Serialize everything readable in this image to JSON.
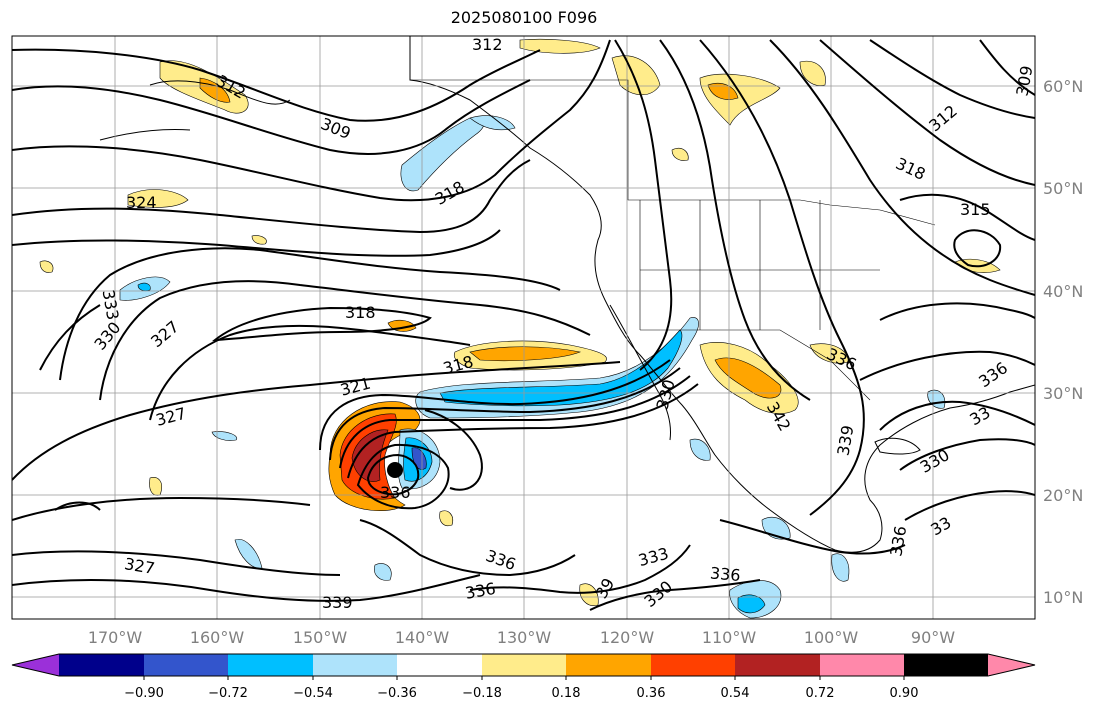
{
  "title": "2025080100 F096",
  "lon_labels": [
    "170°W",
    "160°W",
    "150°W",
    "140°W",
    "130°W",
    "120°W",
    "110°W",
    "100°W",
    "90°W"
  ],
  "lat_labels": [
    "60°N",
    "50°N",
    "40°N",
    "30°N",
    "20°N",
    "10°N"
  ],
  "colorbar": {
    "colors": [
      "#9b30d9",
      "#00008b",
      "#3355cc",
      "#00bfff",
      "#aee3fb",
      "#ffffff",
      "#ffec8b",
      "#ffa500",
      "#ff4000",
      "#b22222",
      "#ff88aa"
    ],
    "ticks": [
      "−0.90",
      "−0.72",
      "−0.54",
      "−0.36",
      "−0.18",
      "0.18",
      "0.36",
      "0.54",
      "0.72",
      "0.90"
    ]
  },
  "contour_labels": [
    {
      "text": "312"
    },
    {
      "text": "312"
    },
    {
      "text": "309"
    },
    {
      "text": "324"
    },
    {
      "text": "318"
    },
    {
      "text": "309"
    },
    {
      "text": "312"
    },
    {
      "text": "318"
    },
    {
      "text": "315"
    },
    {
      "text": "333"
    },
    {
      "text": "330"
    },
    {
      "text": "327"
    },
    {
      "text": "318"
    },
    {
      "text": "318"
    },
    {
      "text": "321"
    },
    {
      "text": "327"
    },
    {
      "text": "330"
    },
    {
      "text": "336"
    },
    {
      "text": "336"
    },
    {
      "text": "342"
    },
    {
      "text": "339"
    },
    {
      "text": "330"
    },
    {
      "text": "33"
    },
    {
      "text": "336"
    },
    {
      "text": "327"
    },
    {
      "text": "339"
    },
    {
      "text": "336"
    },
    {
      "text": "336"
    },
    {
      "text": "39"
    },
    {
      "text": "333"
    },
    {
      "text": "330"
    },
    {
      "text": "336"
    },
    {
      "text": "336"
    },
    {
      "text": "33"
    }
  ]
}
